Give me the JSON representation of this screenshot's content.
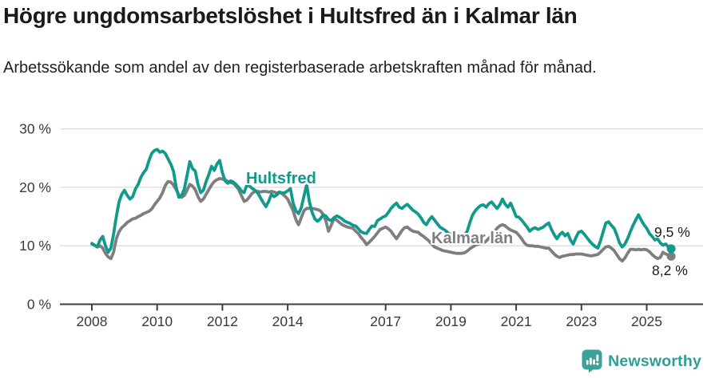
{
  "header": {
    "title": "Högre ungdomsarbetslöshet i Hultsfred än i Kalmar län",
    "subtitle": "Arbetssökande som andel av den registerbaserade arbetskraften månad för månad."
  },
  "chart_data": {
    "type": "line",
    "title": "Högre ungdomsarbetslöshet i Hultsfred än i Kalmar län",
    "unit": "%",
    "frequency": "monthly",
    "x_start": "2008-01",
    "x_end": "2025-10",
    "ylim": [
      0,
      30
    ],
    "grid": "horizontal",
    "legend_position": "inline-labels",
    "x_ticks": [
      {
        "year": 2008,
        "label": "2008"
      },
      {
        "year": 2010,
        "label": "2010"
      },
      {
        "year": 2012,
        "label": "2012"
      },
      {
        "year": 2014,
        "label": "2014"
      },
      {
        "year": 2017,
        "label": "2017"
      },
      {
        "year": 2019,
        "label": "2019"
      },
      {
        "year": 2021,
        "label": "2021"
      },
      {
        "year": 2023,
        "label": "2023"
      },
      {
        "year": 2025,
        "label": "2025"
      }
    ],
    "y_ticks": [
      {
        "value": 0,
        "label": "0 %"
      },
      {
        "value": 10,
        "label": "10 %"
      },
      {
        "value": 20,
        "label": "20 %"
      },
      {
        "value": 30,
        "label": "30 %"
      }
    ],
    "style": {
      "grid_color": "#dcdcdc",
      "axis_color": "#3f3f3f",
      "tick_label_color": "#3a3a3a",
      "value_label_color": "#1a1a1a"
    },
    "series": [
      {
        "id": "hultsfred",
        "name": "Hultsfred",
        "color": "#119a8b",
        "end_value": 9.5,
        "end_label": "9,5 %",
        "values": [
          10.4,
          10.1,
          9.8,
          11.0,
          11.6,
          10.0,
          8.9,
          9.6,
          12.0,
          15.0,
          17.5,
          18.8,
          19.5,
          18.6,
          18.0,
          18.4,
          19.7,
          20.5,
          21.7,
          22.5,
          23.1,
          24.6,
          25.8,
          26.3,
          26.5,
          26.0,
          26.2,
          25.8,
          24.9,
          24.0,
          22.8,
          20.0,
          18.3,
          18.6,
          19.7,
          22.0,
          24.4,
          23.2,
          22.8,
          20.5,
          19.1,
          19.5,
          21.0,
          22.2,
          23.6,
          22.9,
          24.0,
          24.6,
          22.5,
          21.1,
          20.7,
          21.1,
          20.9,
          20.5,
          20.0,
          19.4,
          19.1,
          20.4,
          20.2,
          19.8,
          19.5,
          19.0,
          18.2,
          17.4,
          16.7,
          17.6,
          18.8,
          18.4,
          18.7,
          19.2,
          19.0,
          19.1,
          19.4,
          19.8,
          17.3,
          16.0,
          15.5,
          16.5,
          18.5,
          20.5,
          17.5,
          15.7,
          14.6,
          14.2,
          14.6,
          15.3,
          15.1,
          14.5,
          14.3,
          14.8,
          15.1,
          14.9,
          14.6,
          14.2,
          14.0,
          13.8,
          13.5,
          13.4,
          12.9,
          12.4,
          12.2,
          12.1,
          12.8,
          13.4,
          13.3,
          14.3,
          14.6,
          14.9,
          15.1,
          15.7,
          16.4,
          16.9,
          17.3,
          16.6,
          16.4,
          16.8,
          17.1,
          16.6,
          16.1,
          15.8,
          15.4,
          14.8,
          14.0,
          13.6,
          14.4,
          15.0,
          14.4,
          13.8,
          13.2,
          12.9,
          12.6,
          12.2,
          11.9,
          12.3,
          12.0,
          11.7,
          11.5,
          11.8,
          12.5,
          14.0,
          15.3,
          16.0,
          16.5,
          16.9,
          17.0,
          16.6,
          17.2,
          17.5,
          16.9,
          16.4,
          17.0,
          18.0,
          17.1,
          16.6,
          17.3,
          16.2,
          15.0,
          14.9,
          14.4,
          13.8,
          13.2,
          12.5,
          12.9,
          13.1,
          12.8,
          13.0,
          13.2,
          13.6,
          13.9,
          12.8,
          11.9,
          11.2,
          11.9,
          12.3,
          11.7,
          12.1,
          11.0,
          10.3,
          11.4,
          12.3,
          12.5,
          12.0,
          11.4,
          10.8,
          10.3,
          9.9,
          9.6,
          10.8,
          12.4,
          13.9,
          14.1,
          13.5,
          13.0,
          11.9,
          10.5,
          9.8,
          10.3,
          11.2,
          12.4,
          13.5,
          14.4,
          15.3,
          14.4,
          13.6,
          13.0,
          12.1,
          11.6,
          11.0,
          11.2,
          10.5,
          10.1,
          10.3,
          9.8,
          9.5
        ]
      },
      {
        "id": "kalmar-lan",
        "name": "Kalmar län",
        "color": "#7e7e7e",
        "end_value": 8.2,
        "end_label": "8,2 %",
        "values": [
          10.3,
          10.1,
          9.8,
          10.0,
          9.6,
          8.7,
          8.1,
          7.8,
          8.9,
          11.2,
          12.4,
          13.1,
          13.5,
          14.0,
          14.3,
          14.6,
          14.7,
          15.0,
          15.2,
          15.5,
          15.7,
          15.9,
          16.3,
          17.0,
          17.6,
          18.2,
          19.1,
          20.3,
          21.0,
          20.9,
          20.4,
          19.6,
          18.7,
          18.3,
          18.6,
          19.5,
          20.5,
          20.2,
          19.6,
          18.4,
          17.6,
          18.0,
          18.8,
          19.6,
          20.4,
          21.0,
          21.3,
          21.5,
          21.4,
          21.3,
          21.0,
          20.8,
          20.7,
          20.2,
          19.6,
          18.6,
          17.6,
          17.8,
          18.4,
          19.0,
          19.3,
          19.3,
          19.2,
          19.3,
          19.3,
          19.2,
          19.3,
          19.2,
          19.0,
          19.2,
          18.9,
          18.5,
          18.0,
          17.0,
          16.0,
          14.5,
          13.6,
          14.8,
          16.0,
          16.4,
          16.4,
          16.4,
          16.3,
          16.2,
          16.0,
          15.4,
          14.3,
          12.5,
          13.5,
          14.6,
          14.4,
          14.0,
          13.6,
          13.4,
          13.2,
          13.1,
          13.0,
          12.5,
          12.1,
          11.4,
          10.9,
          10.2,
          10.6,
          11.1,
          11.6,
          12.2,
          12.8,
          13.0,
          13.2,
          12.9,
          12.5,
          11.8,
          11.2,
          11.9,
          12.6,
          13.1,
          13.2,
          12.8,
          12.5,
          12.4,
          12.3,
          11.9,
          11.6,
          11.2,
          10.8,
          10.3,
          9.8,
          9.6,
          9.4,
          9.2,
          9.1,
          9.0,
          8.9,
          8.8,
          8.7,
          8.7,
          8.7,
          8.8,
          9.1,
          9.5,
          9.8,
          10.1,
          10.3,
          10.4,
          10.5,
          10.8,
          11.3,
          11.8,
          12.4,
          13.0,
          13.4,
          13.6,
          13.4,
          13.0,
          12.7,
          12.5,
          12.3,
          11.8,
          11.2,
          10.5,
          10.1,
          10.0,
          10.0,
          9.9,
          9.9,
          9.8,
          9.7,
          9.6,
          9.6,
          9.1,
          8.6,
          8.2,
          8.0,
          8.2,
          8.3,
          8.4,
          8.5,
          8.5,
          8.6,
          8.6,
          8.6,
          8.5,
          8.4,
          8.3,
          8.3,
          8.4,
          8.5,
          8.9,
          9.4,
          9.8,
          9.9,
          9.6,
          9.2,
          8.5,
          7.8,
          7.4,
          7.9,
          8.7,
          9.4,
          9.4,
          9.3,
          9.4,
          9.3,
          9.4,
          9.3,
          9.0,
          8.5,
          8.1,
          7.8,
          8.0,
          8.9,
          8.6,
          8.4,
          8.2
        ]
      }
    ]
  },
  "footer": {
    "brand": "Newsworthy",
    "brand_color": "#2d9f97",
    "logo_color": "#3ba29a"
  }
}
